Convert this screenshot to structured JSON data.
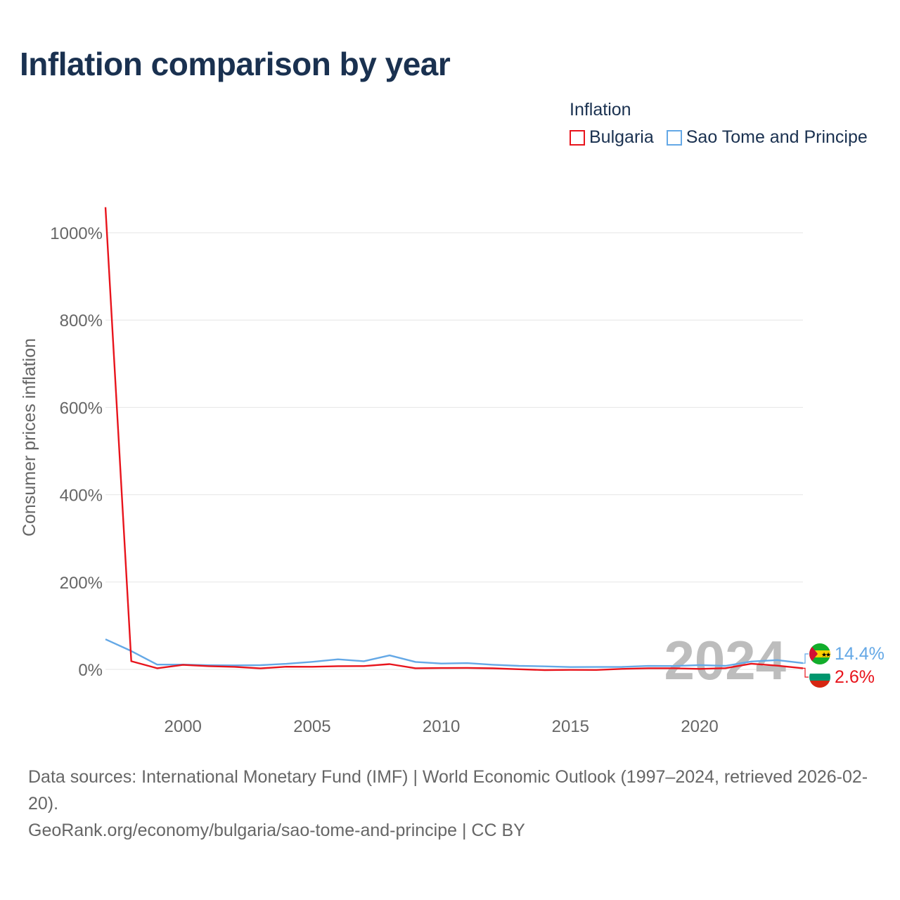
{
  "title": "Inflation comparison by year",
  "legend": {
    "title": "Inflation",
    "items": [
      {
        "label": "Bulgaria",
        "color": "#e8141c"
      },
      {
        "label": "Sao Tome and Principe",
        "color": "#64a8e6"
      }
    ]
  },
  "footer": {
    "sources": "Data sources: International Monetary Fund (IMF) | World Economic Outlook (1997–2024, retrieved 2026-02-20).",
    "url": "GeoRank.org/economy/bulgaria/sao-tome-and-principe | CC BY"
  },
  "chart_data": {
    "type": "line",
    "title": "Inflation comparison by year",
    "xlabel": "",
    "ylabel": "Consumer prices inflation",
    "x": [
      1997,
      1998,
      1999,
      2000,
      2001,
      2002,
      2003,
      2004,
      2005,
      2006,
      2007,
      2008,
      2009,
      2010,
      2011,
      2012,
      2013,
      2014,
      2015,
      2016,
      2017,
      2018,
      2019,
      2020,
      2021,
      2022,
      2023,
      2024
    ],
    "xlim": [
      1997,
      2024
    ],
    "ylim": [
      -90,
      1060
    ],
    "x_ticks": [
      2000,
      2005,
      2010,
      2015,
      2020
    ],
    "x_tick_labels": [
      "2000",
      "2005",
      "2010",
      "2015",
      "2020"
    ],
    "y_ticks": [
      0,
      200,
      400,
      600,
      800,
      1000
    ],
    "y_tick_labels": [
      "0%",
      "200%",
      "400%",
      "600%",
      "800%",
      "1000%"
    ],
    "grid": true,
    "year_watermark": "2024",
    "series": [
      {
        "name": "Bulgaria",
        "color": "#e8141c",
        "values": [
          1058.4,
          18.7,
          2.6,
          10.3,
          7.4,
          5.8,
          2.3,
          6.1,
          6.0,
          7.4,
          7.6,
          12.0,
          2.5,
          3.0,
          3.4,
          2.4,
          0.4,
          -1.6,
          -1.1,
          -1.3,
          1.2,
          2.6,
          2.5,
          1.2,
          2.8,
          13.0,
          8.6,
          2.6
        ],
        "end_label": "2.6%"
      },
      {
        "name": "Sao Tome and Principe",
        "color": "#64a8e6",
        "values": [
          69.0,
          42.1,
          11.0,
          11.0,
          9.5,
          9.2,
          9.6,
          12.8,
          17.2,
          23.1,
          18.6,
          32.0,
          17.0,
          13.3,
          14.3,
          10.6,
          8.1,
          7.0,
          5.3,
          5.4,
          5.7,
          7.9,
          7.7,
          9.8,
          8.1,
          18.0,
          21.2,
          14.4
        ],
        "end_label": "14.4%"
      }
    ]
  }
}
